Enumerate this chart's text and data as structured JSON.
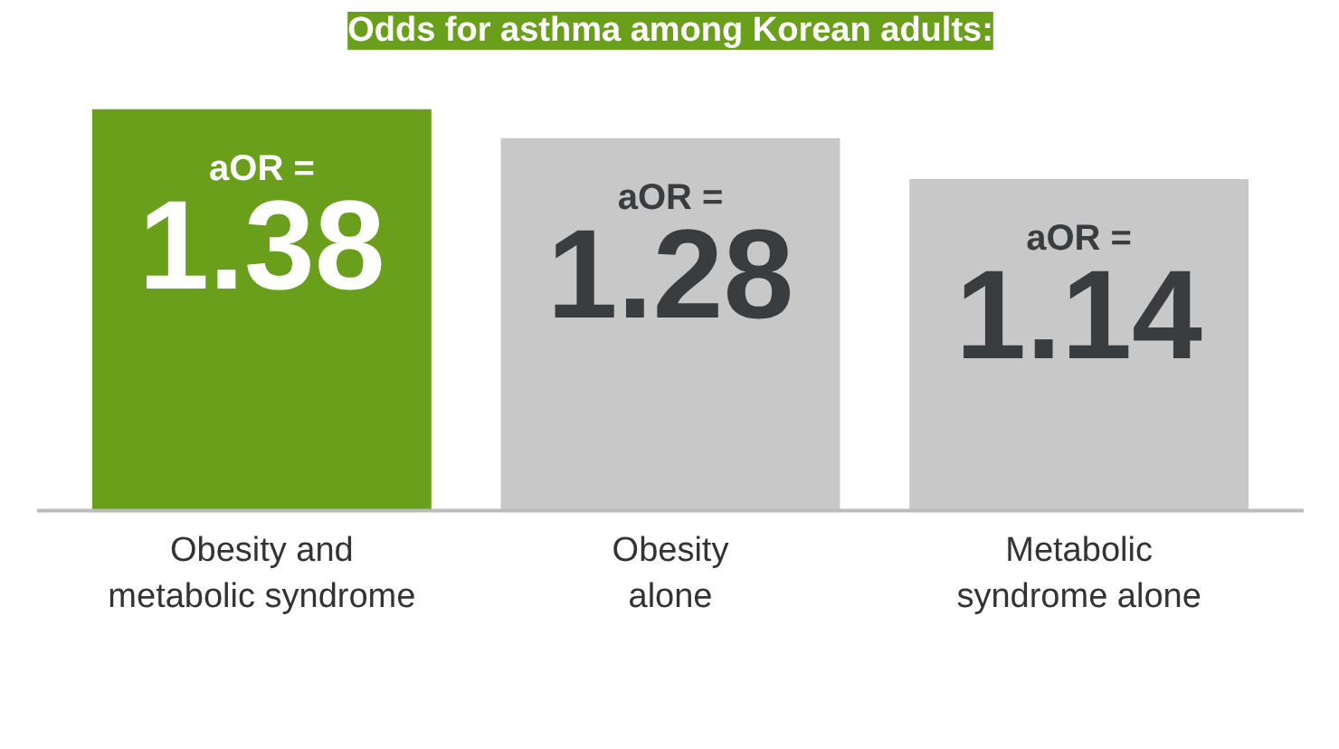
{
  "chart_data": {
    "type": "bar",
    "title": "Odds for asthma among Korean adults:",
    "categories": [
      "Obesity and\nmetabolic syndrome",
      "Obesity\nalone",
      "Metabolic\nsyndrome alone"
    ],
    "values": [
      1.38,
      1.28,
      1.14
    ],
    "colors": [
      "#6a9f1c",
      "#c8c8c8",
      "#c8c8c8"
    ],
    "data_labels": true,
    "annotations": [
      {
        "text": "aOR =",
        "x": "Obesity and\nmetabolic syndrome",
        "y": 1.38
      },
      {
        "text": "aOR =",
        "x": "Obesity\nalone",
        "y": 1.28
      },
      {
        "text": "aOR =",
        "x": "Metabolic\nsyndrome alone",
        "y": 1.14
      }
    ],
    "stacked": false
  }
}
